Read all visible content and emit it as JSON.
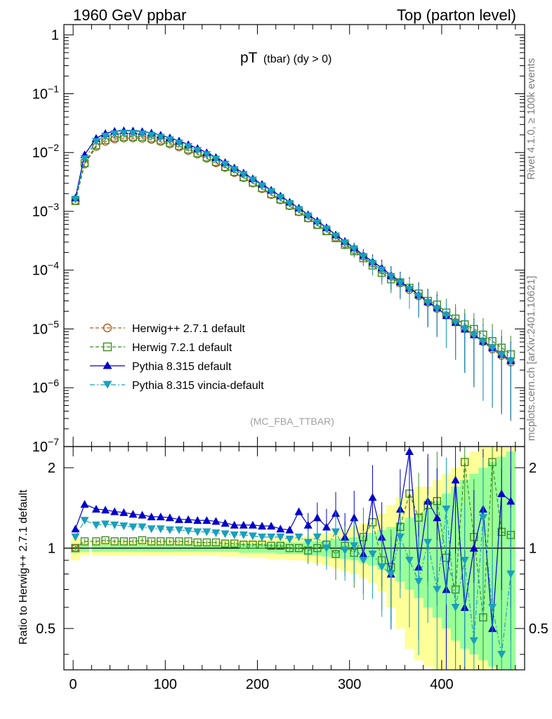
{
  "header": {
    "left": "1960 GeV ppbar",
    "right": "Top (parton level)"
  },
  "side_text": {
    "rivet": "Rivet 4.1.0, ≥ 100k events",
    "mcplots": "mcplots.cern.ch [arXiv:2401.10621]"
  },
  "colors": {
    "herwigpp": "#b85a1e",
    "herwig7": "#3c8c1e",
    "pythia": "#0000cc",
    "vincia": "#1aa0bc",
    "band_yellow": "#ffff99",
    "band_green": "#99ff99"
  },
  "chart_data": [
    {
      "type": "line",
      "title": "pT (tbar) (dy > 0)",
      "title_main": "pT",
      "title_sub": "(tbar) (dy > 0)",
      "analysis": "(MC_FBA_TTBAR)",
      "yscale": "log",
      "xlim": [
        -10,
        490
      ],
      "ylim": [
        1e-07,
        1.5
      ],
      "xticks": [
        0,
        100,
        200,
        300,
        400
      ],
      "yticks": [
        {
          "value": 1,
          "base": "1",
          "exp": ""
        },
        {
          "value": 0.1,
          "base": "10",
          "exp": "−1"
        },
        {
          "value": 0.01,
          "base": "10",
          "exp": "−2"
        },
        {
          "value": 0.001,
          "base": "10",
          "exp": "−3"
        },
        {
          "value": 0.0001,
          "base": "10",
          "exp": "−4"
        },
        {
          "value": 1e-05,
          "base": "10",
          "exp": "−5"
        },
        {
          "value": 1e-06,
          "base": "10",
          "exp": "−6"
        },
        {
          "value": 1e-07,
          "base": "10",
          "exp": "−7"
        }
      ],
      "legend_position": "bottom-left",
      "x": [
        2.5,
        12.5,
        25,
        35,
        45,
        55,
        65,
        75,
        85,
        95,
        105,
        115,
        125,
        135,
        145,
        155,
        165,
        175,
        185,
        195,
        205,
        215,
        225,
        235,
        245,
        255,
        265,
        275,
        285,
        295,
        305,
        315,
        325,
        335,
        345,
        355,
        365,
        375,
        385,
        395,
        405,
        415,
        425,
        435,
        445,
        455,
        465,
        475
      ],
      "series": [
        {
          "name": "Herwig++ 2.7.1 default",
          "marker": "circle-open",
          "style": "dashed",
          "values": [
            0.0015,
            0.0063,
            0.0125,
            0.0153,
            0.0168,
            0.0174,
            0.0175,
            0.0172,
            0.0165,
            0.0152,
            0.0138,
            0.0123,
            0.0107,
            0.0093,
            0.0079,
            0.0066,
            0.0055,
            0.0045,
            0.0037,
            0.003,
            0.0024,
            0.0019,
            0.00155,
            0.00123,
            0.00097,
            0.00076,
            0.00059,
            0.00046,
            0.00036,
            0.00028,
            0.00022,
            0.00017,
            0.00013,
            0.0001,
            7.8e-05,
            6e-05,
            4.6e-05,
            3.6e-05,
            2.8e-05,
            2.2e-05,
            1.7e-05,
            1.3e-05,
            1e-05,
            8e-06,
            6e-06,
            4.5e-06,
            3.5e-06,
            2.7e-06
          ]
        },
        {
          "name": "Herwig 7.2.1 default",
          "marker": "square-open",
          "style": "dashed",
          "values": [
            0.0015,
            0.0066,
            0.0133,
            0.0163,
            0.0179,
            0.0185,
            0.0186,
            0.0183,
            0.0175,
            0.0161,
            0.0146,
            0.013,
            0.0113,
            0.0098,
            0.0083,
            0.0069,
            0.0057,
            0.0047,
            0.0038,
            0.00308,
            0.00248,
            0.00196,
            0.00159,
            0.00126,
            0.00099,
            0.00077,
            0.00059,
            0.00046,
            0.00035,
            0.00027,
            0.00021,
            0.00016,
            0.00012,
            9e-05,
            7e-05,
            6.2e-05,
            5e-05,
            4e-05,
            3e-05,
            2.6e-05,
            1.9e-05,
            1.5e-05,
            1.2e-05,
            1e-05,
            8e-06,
            6.2e-06,
            4.8e-06,
            3.7e-06
          ]
        },
        {
          "name": "Pythia 8.315 default",
          "marker": "triangle-up-filled",
          "style": "solid",
          "values": [
            0.0017,
            0.0092,
            0.0175,
            0.0212,
            0.0231,
            0.0236,
            0.0234,
            0.0228,
            0.0216,
            0.0199,
            0.0179,
            0.0158,
            0.0137,
            0.0118,
            0.01,
            0.0083,
            0.0068,
            0.0055,
            0.0045,
            0.0036,
            0.0029,
            0.0023,
            0.00183,
            0.00144,
            0.00114,
            0.00088,
            0.00069,
            0.00053,
            0.0004,
            0.00031,
            0.00024,
            0.00018,
            0.00014,
            0.00011,
            8.2e-05,
            6.4e-05,
            5e-05,
            3.8e-05,
            2.9e-05,
            2.3e-05,
            1.7e-05,
            1.3e-05,
            1e-05,
            8e-06,
            6.2e-06,
            4.8e-06,
            3.7e-06,
            2.9e-06
          ]
        },
        {
          "name": "Pythia 8.315 vincia-default",
          "marker": "triangle-down-filled",
          "style": "dashdot",
          "values": [
            0.0016,
            0.0078,
            0.0154,
            0.0189,
            0.0207,
            0.0213,
            0.0212,
            0.0207,
            0.0196,
            0.0181,
            0.0164,
            0.0145,
            0.0126,
            0.0108,
            0.0092,
            0.0077,
            0.0063,
            0.0051,
            0.0042,
            0.0034,
            0.0027,
            0.00215,
            0.00172,
            0.00136,
            0.00107,
            0.00083,
            0.00064,
            0.0005,
            0.00038,
            0.00029,
            0.00023,
            0.00017,
            0.00013,
            0.0001,
            7.8e-05,
            6.1e-05,
            4.7e-05,
            3.6e-05,
            2.8e-05,
            2.2e-05,
            1.7e-05,
            1.3e-05,
            1e-05,
            7.8e-06,
            6e-06,
            4.7e-06,
            3.6e-06,
            2.8e-06
          ]
        }
      ]
    },
    {
      "type": "line",
      "ylabel": "Ratio to Herwig++ 2.7.1 default",
      "xlim": [
        -10,
        490
      ],
      "ylim": [
        0.35,
        2.4
      ],
      "yscale": "log",
      "xticks": [
        0,
        100,
        200,
        300,
        400
      ],
      "yticks": [
        0.5,
        1,
        2
      ],
      "ytick_labels": [
        "0.5",
        "1",
        "2"
      ],
      "reference_line": 1,
      "x": [
        2.5,
        12.5,
        25,
        35,
        45,
        55,
        65,
        75,
        85,
        95,
        105,
        115,
        125,
        135,
        145,
        155,
        165,
        175,
        185,
        195,
        205,
        215,
        225,
        235,
        245,
        255,
        265,
        275,
        285,
        295,
        305,
        315,
        325,
        335,
        345,
        355,
        365,
        375,
        385,
        395,
        405,
        415,
        425,
        435,
        445,
        455,
        465,
        475
      ],
      "bands": [
        {
          "name": "yellow",
          "upper": [
            1.09,
            1.06,
            1.06,
            1.06,
            1.06,
            1.06,
            1.06,
            1.06,
            1.06,
            1.06,
            1.06,
            1.06,
            1.06,
            1.06,
            1.06,
            1.06,
            1.07,
            1.07,
            1.07,
            1.08,
            1.08,
            1.09,
            1.09,
            1.1,
            1.1,
            1.11,
            1.12,
            1.14,
            1.16,
            1.18,
            1.21,
            1.24,
            1.28,
            1.35,
            1.45,
            1.55,
            1.6,
            1.7,
            1.7,
            1.8,
            1.9,
            2.0,
            2.2,
            2.3,
            2.4,
            2.4,
            2.4,
            2.4
          ],
          "lower": [
            0.9,
            0.94,
            0.94,
            0.94,
            0.94,
            0.94,
            0.94,
            0.94,
            0.94,
            0.94,
            0.94,
            0.94,
            0.94,
            0.94,
            0.94,
            0.94,
            0.93,
            0.93,
            0.93,
            0.92,
            0.92,
            0.91,
            0.91,
            0.9,
            0.9,
            0.89,
            0.88,
            0.86,
            0.84,
            0.82,
            0.8,
            0.77,
            0.74,
            0.69,
            0.6,
            0.5,
            0.42,
            0.38,
            0.36,
            0.35,
            0.35,
            0.35,
            0.35,
            0.35,
            0.35,
            0.35,
            0.35,
            0.35
          ]
        },
        {
          "name": "green",
          "upper": [
            1.04,
            1.03,
            1.03,
            1.03,
            1.03,
            1.03,
            1.03,
            1.03,
            1.03,
            1.03,
            1.03,
            1.03,
            1.03,
            1.03,
            1.03,
            1.03,
            1.03,
            1.03,
            1.04,
            1.04,
            1.04,
            1.04,
            1.05,
            1.05,
            1.05,
            1.06,
            1.06,
            1.07,
            1.08,
            1.09,
            1.1,
            1.12,
            1.14,
            1.17,
            1.2,
            1.25,
            1.3,
            1.35,
            1.4,
            1.5,
            1.6,
            1.7,
            1.8,
            1.9,
            2.0,
            2.1,
            2.2,
            2.3
          ],
          "lower": [
            0.96,
            0.97,
            0.97,
            0.97,
            0.97,
            0.97,
            0.97,
            0.97,
            0.97,
            0.97,
            0.97,
            0.97,
            0.97,
            0.97,
            0.97,
            0.97,
            0.97,
            0.97,
            0.96,
            0.96,
            0.96,
            0.96,
            0.95,
            0.95,
            0.95,
            0.94,
            0.94,
            0.93,
            0.92,
            0.91,
            0.9,
            0.88,
            0.86,
            0.83,
            0.8,
            0.75,
            0.7,
            0.65,
            0.6,
            0.55,
            0.5,
            0.45,
            0.42,
            0.4,
            0.38,
            0.36,
            0.35,
            0.35
          ]
        }
      ],
      "series": [
        {
          "name": "Herwig++ 2.7.1 default",
          "values": [
            1,
            1,
            1,
            1,
            1,
            1,
            1,
            1,
            1,
            1,
            1,
            1,
            1,
            1,
            1,
            1,
            1,
            1,
            1,
            1,
            1,
            1,
            1,
            1,
            1,
            1,
            1,
            1,
            1,
            1,
            1,
            1,
            1,
            1,
            1,
            1,
            1,
            1,
            1,
            1,
            1,
            1,
            1,
            1,
            1,
            1,
            1,
            1
          ]
        },
        {
          "name": "Herwig 7.2.1 default",
          "values": [
            1.0,
            1.06,
            1.06,
            1.07,
            1.06,
            1.06,
            1.06,
            1.07,
            1.06,
            1.06,
            1.06,
            1.06,
            1.06,
            1.05,
            1.05,
            1.05,
            1.04,
            1.04,
            1.03,
            1.03,
            1.03,
            1.02,
            1.02,
            1.0,
            1.0,
            0.98,
            1.0,
            1.03,
            0.95,
            1.02,
            0.96,
            1.1,
            1.25,
            0.9,
            0.85,
            1.2,
            1.6,
            1.3,
            1.45,
            1.5,
            0.92,
            0.7,
            2.1,
            1.1,
            0.55,
            2.1,
            1.15,
            1.12
          ]
        },
        {
          "name": "Pythia 8.315 default",
          "values": [
            1.18,
            1.46,
            1.4,
            1.39,
            1.37,
            1.36,
            1.34,
            1.33,
            1.31,
            1.31,
            1.3,
            1.28,
            1.28,
            1.27,
            1.27,
            1.26,
            1.24,
            1.22,
            1.22,
            1.22,
            1.21,
            1.21,
            1.18,
            1.17,
            1.37,
            1.22,
            1.3,
            1.2,
            1.35,
            1.1,
            1.3,
            0.95,
            1.55,
            1.1,
            0.8,
            1.4,
            2.3,
            0.85,
            1.5,
            1.3,
            0.7,
            1.8,
            0.6,
            1.0,
            1.4,
            0.5,
            1.6,
            1.5
          ]
        },
        {
          "name": "Pythia 8.315 vincia-default",
          "values": [
            1.1,
            1.27,
            1.22,
            1.23,
            1.22,
            1.21,
            1.2,
            1.2,
            1.18,
            1.18,
            1.17,
            1.17,
            1.16,
            1.15,
            1.15,
            1.14,
            1.13,
            1.12,
            1.12,
            1.11,
            1.1,
            1.1,
            1.1,
            1.08,
            1.1,
            1.05,
            1.1,
            1.0,
            1.15,
            0.98,
            1.02,
            0.9,
            0.95,
            0.85,
            0.8,
            1.1,
            0.9,
            0.75,
            1.05,
            0.7,
            1.4,
            0.6,
            0.9,
            0.45,
            1.3,
            0.6,
            0.4,
            0.8
          ]
        }
      ]
    }
  ],
  "legend": [
    {
      "label": "Herwig++ 2.7.1 default"
    },
    {
      "label": "Herwig 7.2.1 default"
    },
    {
      "label": "Pythia 8.315 default"
    },
    {
      "label": "Pythia 8.315 vincia-default"
    }
  ]
}
